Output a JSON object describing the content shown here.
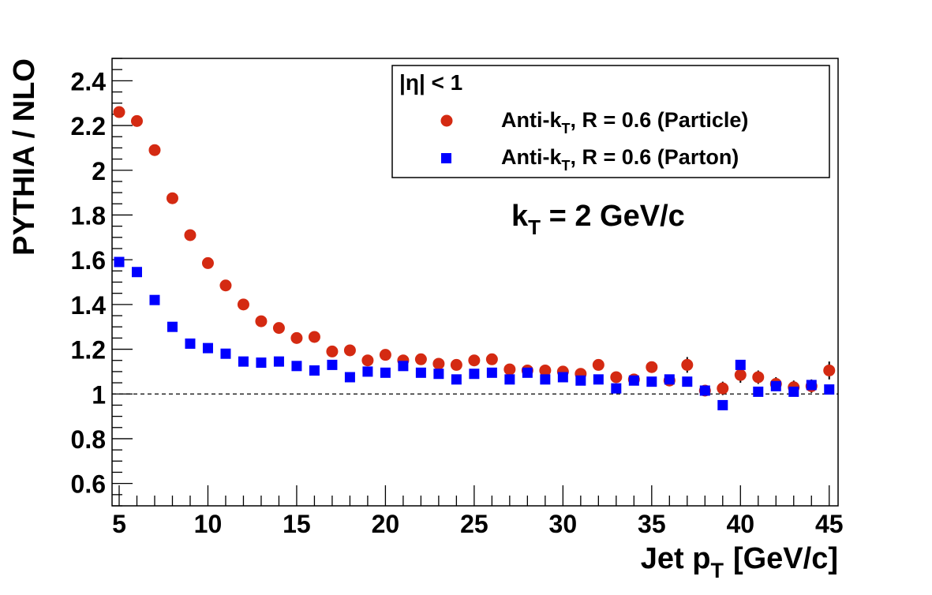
{
  "chart_data": {
    "type": "scatter",
    "xlabel": "Jet p",
    "xlabel_sub": "T",
    "xlabel_unit": "[GeV/c]",
    "ylabel": "PYTHIA / NLO",
    "xlim": [
      4.6,
      45.5
    ],
    "ylim": [
      0.5,
      2.5
    ],
    "xticks": [
      5,
      10,
      15,
      20,
      25,
      30,
      35,
      40,
      45
    ],
    "yticks": [
      0.6,
      0.8,
      1,
      1.2,
      1.4,
      1.6,
      1.8,
      2,
      2.2,
      2.4
    ],
    "ytick_labels": [
      "0.6",
      "0.8",
      "1",
      "1.2",
      "1.4",
      "1.6",
      "1.8",
      "2",
      "2.2",
      "2.4"
    ],
    "reference_line": 1,
    "legend": {
      "header": "|η| < 1",
      "placement": "top-right",
      "entries": [
        {
          "prefix": "Anti-k",
          "sub": "T",
          "suffix": ", R = 0.6 (Particle)",
          "marker": "circle",
          "color": "#d42a12"
        },
        {
          "prefix": "Anti-k",
          "sub": "T",
          "suffix": ", R = 0.6 (Parton)",
          "marker": "square",
          "color": "#0000ff"
        }
      ]
    },
    "annotation": {
      "prefix": "k",
      "sub": "T",
      "suffix": " = 2 GeV/c"
    },
    "series": [
      {
        "key": "particle",
        "marker": "circle",
        "color": "#d42a12",
        "x": [
          5,
          6,
          7,
          8,
          9,
          10,
          11,
          12,
          13,
          14,
          15,
          16,
          17,
          18,
          19,
          20,
          21,
          22,
          23,
          24,
          25,
          26,
          27,
          28,
          29,
          30,
          31,
          32,
          33,
          34,
          35,
          36,
          37,
          38,
          39,
          40,
          41,
          42,
          43,
          44,
          45
        ],
        "y": [
          2.26,
          2.22,
          2.09,
          1.875,
          1.71,
          1.585,
          1.485,
          1.4,
          1.325,
          1.295,
          1.25,
          1.255,
          1.19,
          1.195,
          1.15,
          1.175,
          1.15,
          1.155,
          1.135,
          1.13,
          1.15,
          1.155,
          1.11,
          1.105,
          1.105,
          1.1,
          1.09,
          1.13,
          1.075,
          1.065,
          1.12,
          1.06,
          1.13,
          1.015,
          1.025,
          1.085,
          1.075,
          1.045,
          1.03,
          1.035,
          1.105
        ],
        "err": [
          0,
          0,
          0,
          0,
          0,
          0,
          0,
          0,
          0,
          0,
          0,
          0,
          0,
          0,
          0,
          0,
          0,
          0,
          0,
          0,
          0,
          0,
          0.015,
          0.015,
          0.015,
          0.015,
          0.02,
          0.025,
          0.02,
          0.02,
          0.025,
          0.025,
          0.035,
          0.02,
          0.03,
          0.035,
          0.03,
          0.03,
          0.03,
          0.03,
          0.04
        ]
      },
      {
        "key": "parton",
        "marker": "square",
        "color": "#0000ff",
        "x": [
          5,
          6,
          7,
          8,
          9,
          10,
          11,
          12,
          13,
          14,
          15,
          16,
          17,
          18,
          19,
          20,
          21,
          22,
          23,
          24,
          25,
          26,
          27,
          28,
          29,
          30,
          31,
          32,
          33,
          34,
          35,
          36,
          37,
          38,
          39,
          40,
          41,
          42,
          43,
          44,
          45
        ],
        "y": [
          1.59,
          1.545,
          1.42,
          1.3,
          1.225,
          1.205,
          1.18,
          1.145,
          1.14,
          1.145,
          1.125,
          1.105,
          1.13,
          1.075,
          1.1,
          1.095,
          1.125,
          1.095,
          1.09,
          1.065,
          1.09,
          1.095,
          1.065,
          1.095,
          1.065,
          1.075,
          1.06,
          1.065,
          1.025,
          1.06,
          1.055,
          1.065,
          1.055,
          1.015,
          0.95,
          1.13,
          1.01,
          1.035,
          1.01,
          1.04,
          1.02
        ]
      }
    ]
  }
}
